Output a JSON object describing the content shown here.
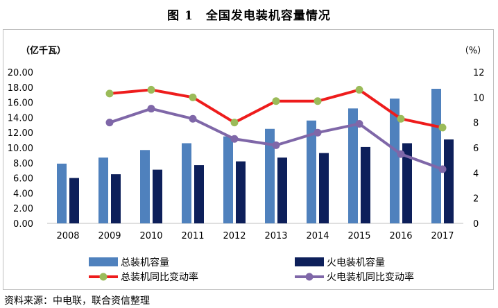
{
  "title": "图 1　全国发电装机容量情况",
  "source": "资料来源：中电联，联合资信整理",
  "chart_data": {
    "type": "bar",
    "categories": [
      "2008",
      "2009",
      "2010",
      "2011",
      "2012",
      "2013",
      "2014",
      "2015",
      "2016",
      "2017"
    ],
    "y_left": {
      "label": "（亿千瓦）",
      "range": [
        0,
        20
      ],
      "ticks": [
        "0.00",
        "2.00",
        "4.00",
        "6.00",
        "8.00",
        "10.00",
        "12.00",
        "14.00",
        "16.00",
        "18.00",
        "20.00"
      ]
    },
    "y_right": {
      "label": "（%）",
      "range": [
        0,
        12
      ],
      "ticks": [
        "0",
        "2",
        "4",
        "6",
        "8",
        "10",
        "12"
      ]
    },
    "grid": false,
    "legend_position": "bottom",
    "series": [
      {
        "name": "总装机容量",
        "type": "bar",
        "axis": "left",
        "color": "#4f81bd",
        "values": [
          7.9,
          8.7,
          9.7,
          10.6,
          11.5,
          12.5,
          13.6,
          15.2,
          16.5,
          17.8
        ]
      },
      {
        "name": "火电装机容量",
        "type": "bar",
        "axis": "left",
        "color": "#0d1f5a",
        "values": [
          6.0,
          6.5,
          7.1,
          7.7,
          8.2,
          8.7,
          9.3,
          10.1,
          10.6,
          11.1
        ]
      },
      {
        "name": "总装机同比变动率",
        "type": "line",
        "axis": "right",
        "color": "#ee1c1c",
        "marker_color": "#9bbb59",
        "values": [
          null,
          10.3,
          10.6,
          10.0,
          8.0,
          9.7,
          9.7,
          10.6,
          8.3,
          7.6
        ]
      },
      {
        "name": "火电装机同比变动率",
        "type": "line",
        "axis": "right",
        "color": "#7f67a8",
        "marker_color": "#7f67a8",
        "values": [
          null,
          8.0,
          9.1,
          8.3,
          6.7,
          6.2,
          7.2,
          7.9,
          5.5,
          4.3
        ]
      }
    ]
  }
}
